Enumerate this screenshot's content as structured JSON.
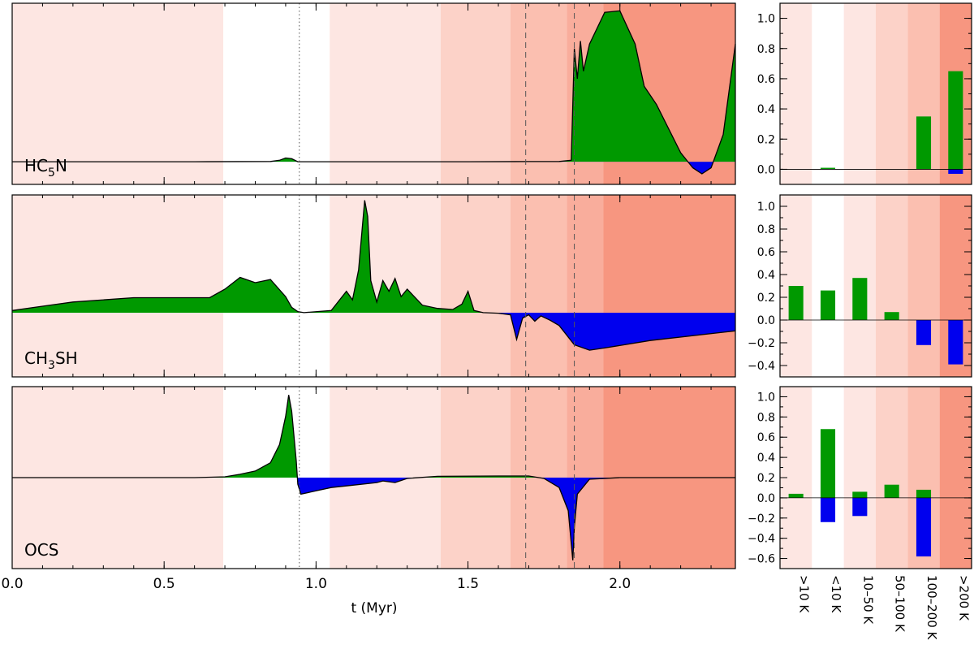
{
  "chart_data": {
    "type": "area",
    "xlabel": "t (Myr)",
    "xlim": [
      0.0,
      2.38
    ],
    "x_ticks": [
      "0.0",
      "0.5",
      "1.0",
      "1.5",
      "2.0"
    ],
    "x_tick_values": [
      0.0,
      0.5,
      1.0,
      1.5,
      2.0
    ],
    "colors": {
      "positive": "#009900",
      "negative": "#0000ee",
      "bands": [
        "#fde6e2",
        "#ffffff",
        "#fde6e2",
        "#fcd2c8",
        "#fbbfb0",
        "#f9ad9c",
        "#f79680"
      ]
    },
    "time_bands": [
      {
        "from": 0.0,
        "to": 0.695,
        "shade": 0
      },
      {
        "from": 0.695,
        "to": 1.045,
        "shade": 1
      },
      {
        "from": 1.045,
        "to": 1.41,
        "shade": 2
      },
      {
        "from": 1.41,
        "to": 1.64,
        "shade": 3
      },
      {
        "from": 1.64,
        "to": 1.825,
        "shade": 4
      },
      {
        "from": 1.825,
        "to": 1.945,
        "shade": 5
      },
      {
        "from": 1.945,
        "to": 2.38,
        "shade": 6
      }
    ],
    "dotted_line_t": 0.945,
    "dashed_lines_t": [
      1.69,
      1.85
    ],
    "bar_categories": [
      ">10 K",
      "<10 K",
      "10–50 K",
      "50–100 K",
      "100–200 K",
      ">200 K"
    ],
    "bar_ticks": [
      "1.0",
      "0.8",
      "0.6",
      "0.4",
      "0.2",
      "0.0",
      "−0.2",
      "−0.4",
      "−0.6"
    ],
    "bar_tick_values": [
      1.0,
      0.8,
      0.6,
      0.4,
      0.2,
      0.0,
      -0.2,
      -0.4,
      -0.6
    ],
    "panels": [
      {
        "label": "HC",
        "label_sub": "5",
        "label_end": "N",
        "ylim": [
          -0.15,
          1.05
        ],
        "curve": {
          "t": [
            0.0,
            0.3,
            0.6,
            0.85,
            0.88,
            0.9,
            0.92,
            0.94,
            1.2,
            1.5,
            1.7,
            1.8,
            1.84,
            1.85,
            1.86,
            1.87,
            1.88,
            1.9,
            1.95,
            2.0,
            2.05,
            2.08,
            2.12,
            2.16,
            2.2,
            2.24,
            2.27,
            2.3,
            2.34,
            2.38
          ],
          "y": [
            0.0,
            0.0,
            0.0,
            0.002,
            0.01,
            0.025,
            0.02,
            0.0,
            0.0,
            0.0,
            0.001,
            0.002,
            0.01,
            0.75,
            0.55,
            0.8,
            0.6,
            0.78,
            0.99,
            1.0,
            0.78,
            0.5,
            0.38,
            0.22,
            0.06,
            -0.04,
            -0.08,
            -0.04,
            0.18,
            0.78
          ]
        },
        "bars": {
          "positive": [
            0.0,
            0.01,
            0.0,
            0.0,
            0.35,
            0.65
          ],
          "negative": [
            0.0,
            0.0,
            0.0,
            0.0,
            0.0,
            -0.03
          ]
        },
        "bar_ylim": [
          -0.1,
          1.1
        ],
        "bar_tick_count": 6
      },
      {
        "label": "CH",
        "label_sub": "3",
        "label_end": "SH",
        "ylim": [
          -0.6,
          1.1
        ],
        "curve": {
          "t": [
            0.0,
            0.1,
            0.2,
            0.4,
            0.55,
            0.65,
            0.7,
            0.75,
            0.8,
            0.85,
            0.9,
            0.92,
            0.94,
            0.96,
            1.05,
            1.1,
            1.12,
            1.14,
            1.16,
            1.17,
            1.18,
            1.2,
            1.22,
            1.24,
            1.26,
            1.28,
            1.3,
            1.35,
            1.4,
            1.45,
            1.48,
            1.5,
            1.52,
            1.55,
            1.6,
            1.64,
            1.66,
            1.68,
            1.7,
            1.72,
            1.74,
            1.77,
            1.8,
            1.85,
            1.9,
            1.95,
            2.1,
            2.38
          ],
          "y": [
            0.02,
            0.06,
            0.1,
            0.14,
            0.14,
            0.14,
            0.22,
            0.33,
            0.28,
            0.31,
            0.15,
            0.05,
            0.01,
            0.0,
            0.02,
            0.2,
            0.12,
            0.4,
            1.05,
            0.9,
            0.3,
            0.1,
            0.3,
            0.2,
            0.32,
            0.15,
            0.22,
            0.07,
            0.04,
            0.03,
            0.08,
            0.2,
            0.02,
            0.0,
            -0.005,
            -0.02,
            -0.25,
            -0.05,
            -0.02,
            -0.08,
            -0.03,
            -0.07,
            -0.12,
            -0.3,
            -0.35,
            -0.33,
            -0.26,
            -0.17
          ]
        },
        "bars": {
          "positive": [
            0.3,
            0.26,
            0.37,
            0.07,
            0.0,
            0.0
          ],
          "negative": [
            0.0,
            0.0,
            0.0,
            0.0,
            -0.22,
            -0.39
          ]
        },
        "bar_ylim": [
          -0.5,
          1.1
        ],
        "bar_tick_count": 8
      },
      {
        "label": "OCS",
        "label_sub": "",
        "label_end": "",
        "ylim": [
          -0.55,
          0.55
        ],
        "curve": {
          "t": [
            0.0,
            0.3,
            0.6,
            0.7,
            0.75,
            0.8,
            0.85,
            0.88,
            0.9,
            0.91,
            0.92,
            0.935,
            0.94,
            0.95,
            1.0,
            1.05,
            1.1,
            1.2,
            1.22,
            1.26,
            1.3,
            1.4,
            1.6,
            1.7,
            1.75,
            1.8,
            1.83,
            1.845,
            1.85,
            1.86,
            1.9,
            2.0,
            2.38
          ],
          "y": [
            0.0,
            0.0,
            0.0,
            0.005,
            0.02,
            0.04,
            0.09,
            0.2,
            0.37,
            0.5,
            0.4,
            0.1,
            -0.04,
            -0.1,
            -0.08,
            -0.06,
            -0.05,
            -0.03,
            -0.02,
            -0.03,
            -0.005,
            0.008,
            0.01,
            0.01,
            -0.005,
            -0.06,
            -0.2,
            -0.5,
            -0.3,
            -0.1,
            -0.01,
            0.0,
            0.0
          ]
        },
        "bars": {
          "positive": [
            0.04,
            0.68,
            0.06,
            0.13,
            0.08,
            0.0
          ],
          "negative": [
            0.0,
            -0.24,
            -0.18,
            0.0,
            -0.58,
            0.0
          ]
        },
        "bar_ylim": [
          -0.7,
          1.1
        ],
        "bar_tick_count": 9
      }
    ]
  }
}
